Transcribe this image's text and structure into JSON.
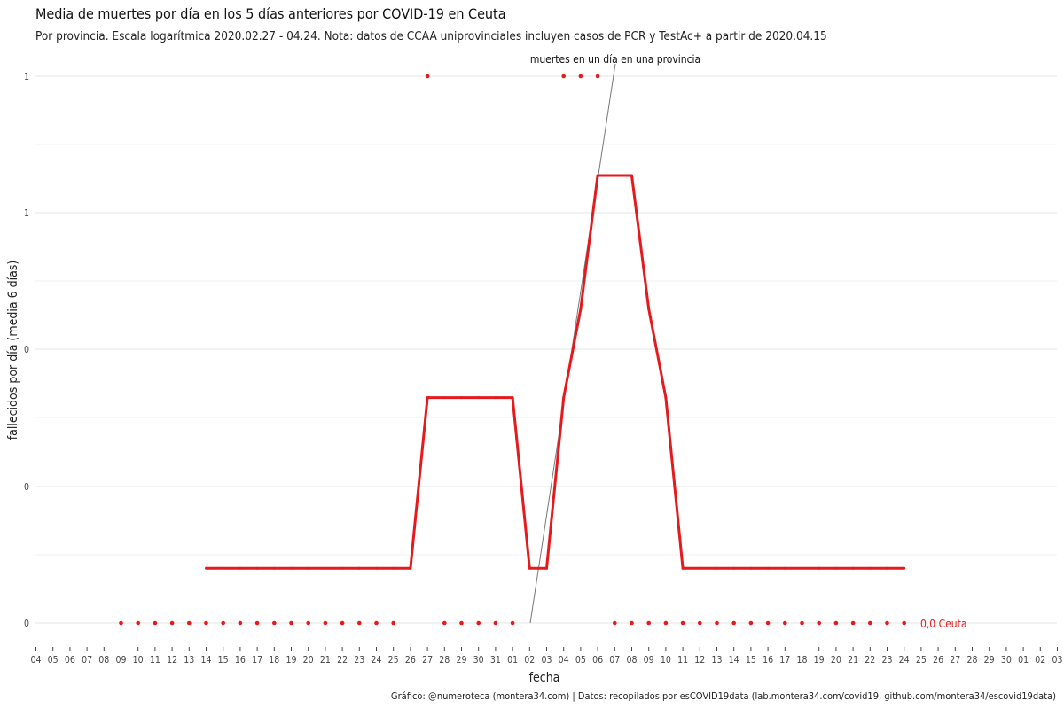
{
  "chart_data": {
    "type": "line",
    "title": "Media de muertes por día en los 5 días anteriores por COVID-19 en Ceuta",
    "subtitle": "Por provincia. Escala logarítmica  2020.02.27 - 04.24. Nota: datos de CCAA uniprovinciales incluyen casos de PCR y TestAc+ a partir de 2020.04.15",
    "xlabel": "fecha",
    "ylabel": "fallecidos por día (media 6 días)",
    "caption": "Gráfico: @numeroteca (montera34.com) | Datos: recopilados por esCOVID19data (lab.montera34.com/covid19, github.com/montera34/escovid19data)",
    "annotation": "muertes en un día en una provincia",
    "y_scale": "log",
    "ylim": [
      0,
      1
    ],
    "ytick_labels": [
      "1",
      "1",
      "0",
      "0",
      "0"
    ],
    "grid": true,
    "legend": "none",
    "x_tick_labels": [
      "04",
      "05",
      "06",
      "07",
      "08",
      "09",
      "10",
      "11",
      "12",
      "13",
      "14",
      "15",
      "16",
      "17",
      "18",
      "19",
      "20",
      "21",
      "22",
      "23",
      "24",
      "25",
      "26",
      "27",
      "28",
      "29",
      "30",
      "31",
      "01",
      "02",
      "03",
      "04",
      "05",
      "06",
      "07",
      "08",
      "09",
      "10",
      "11",
      "12",
      "13",
      "14",
      "15",
      "16",
      "17",
      "18",
      "19",
      "20",
      "21",
      "22",
      "23",
      "24",
      "25",
      "26",
      "27",
      "28",
      "29",
      "30",
      "01",
      "02",
      "03"
    ],
    "x_dates": [
      "2020-03-14",
      "2020-03-15",
      "2020-03-16",
      "2020-03-17",
      "2020-03-18",
      "2020-03-19",
      "2020-03-20",
      "2020-03-21",
      "2020-03-22",
      "2020-03-23",
      "2020-03-24",
      "2020-03-25",
      "2020-03-26",
      "2020-03-27",
      "2020-03-28",
      "2020-03-29",
      "2020-03-30",
      "2020-03-31",
      "2020-04-01",
      "2020-04-02",
      "2020-04-03",
      "2020-04-04",
      "2020-04-05",
      "2020-04-06",
      "2020-04-07",
      "2020-04-08",
      "2020-04-09",
      "2020-04-10",
      "2020-04-11",
      "2020-04-12",
      "2020-04-13",
      "2020-04-14",
      "2020-04-15",
      "2020-04-16",
      "2020-04-17",
      "2020-04-18",
      "2020-04-19",
      "2020-04-20",
      "2020-04-21",
      "2020-04-22",
      "2020-04-23",
      "2020-04-24"
    ],
    "series": [
      {
        "name": "Ceuta",
        "end_label": "0,0 Ceuta",
        "color": "#e41a1c",
        "values": [
          0.01,
          0.01,
          0.01,
          0.01,
          0.01,
          0.01,
          0.01,
          0.01,
          0.01,
          0.01,
          0.01,
          0.01,
          0.01,
          0.17,
          0.17,
          0.17,
          0.17,
          0.17,
          0.17,
          0.01,
          0.01,
          0.17,
          0.33,
          0.67,
          0.67,
          0.67,
          0.33,
          0.17,
          0.01,
          0.01,
          0.01,
          0.01,
          0.01,
          0.01,
          0.01,
          0.01,
          0.01,
          0.01,
          0.01,
          0.01,
          0.01,
          0.01
        ]
      }
    ],
    "daily_deaths": {
      "x_dates": [
        "2020-03-09",
        "2020-03-10",
        "2020-03-11",
        "2020-03-12",
        "2020-03-13",
        "2020-03-14",
        "2020-03-15",
        "2020-03-16",
        "2020-03-17",
        "2020-03-18",
        "2020-03-19",
        "2020-03-20",
        "2020-03-21",
        "2020-03-22",
        "2020-03-23",
        "2020-03-24",
        "2020-03-25",
        "2020-03-27",
        "2020-03-28",
        "2020-03-29",
        "2020-03-30",
        "2020-03-31",
        "2020-04-01",
        "2020-04-04",
        "2020-04-05",
        "2020-04-06",
        "2020-04-07",
        "2020-04-08",
        "2020-04-09",
        "2020-04-10",
        "2020-04-11",
        "2020-04-12",
        "2020-04-13",
        "2020-04-14",
        "2020-04-15",
        "2020-04-16",
        "2020-04-17",
        "2020-04-18",
        "2020-04-19",
        "2020-04-20",
        "2020-04-21",
        "2020-04-22",
        "2020-04-23",
        "2020-04-24"
      ],
      "values": [
        0,
        0,
        0,
        0,
        0,
        0,
        0,
        0,
        0,
        0,
        0,
        0,
        0,
        0,
        0,
        0,
        0,
        1,
        0,
        0,
        0,
        0,
        0,
        1,
        1,
        1,
        0,
        0,
        0,
        0,
        0,
        0,
        0,
        0,
        0,
        0,
        0,
        0,
        0,
        0,
        0,
        0,
        0,
        0
      ]
    }
  }
}
